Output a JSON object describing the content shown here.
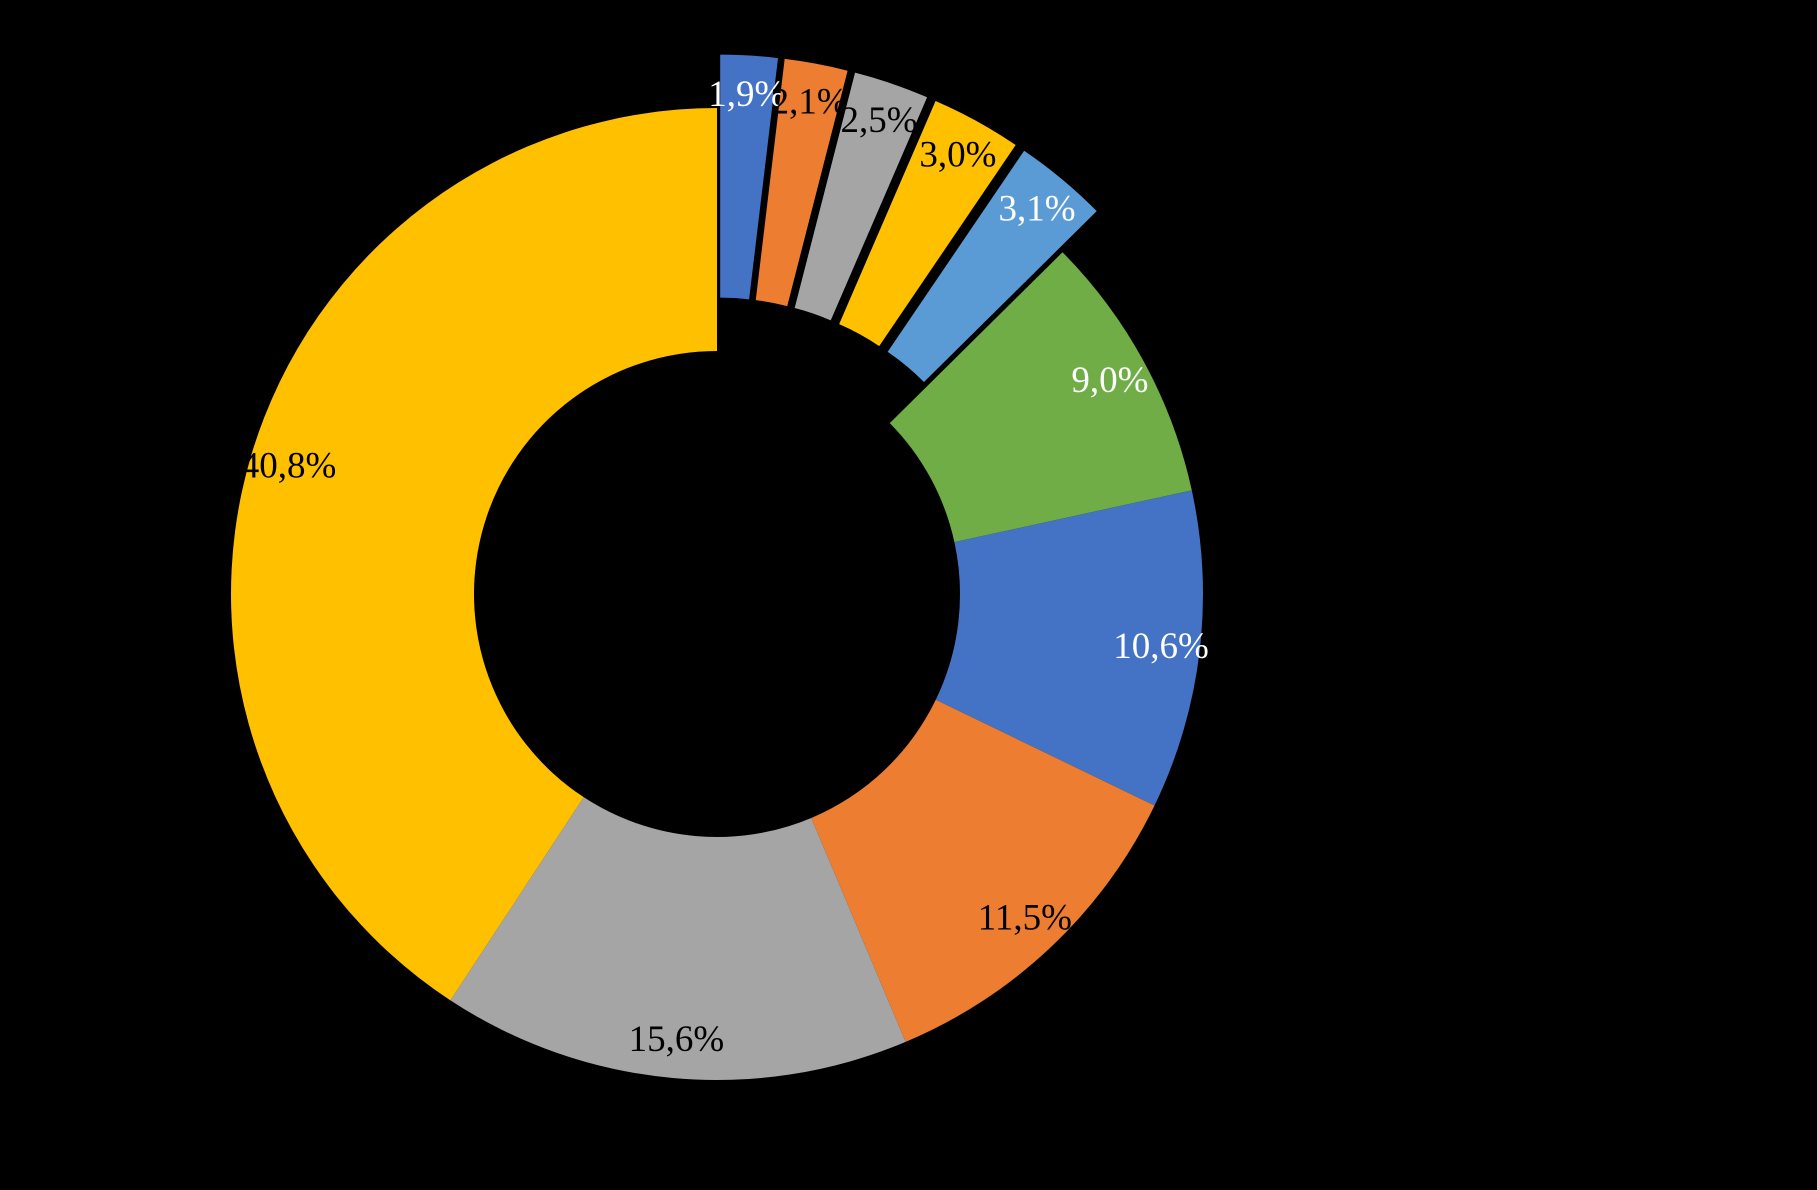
{
  "page": {
    "background": "#000000",
    "title": ""
  },
  "chart_data": {
    "type": "pie",
    "subtype": "donut",
    "title": "",
    "legend_position": "none",
    "start_angle_deg": 0,
    "direction": "clockwise",
    "donut_hole_ratio": 0.5,
    "explode_offset_ratio": 0.11,
    "label_position": "inside-end",
    "label_format": "percent, comma decimal separator",
    "slices": [
      {
        "value": 1.9,
        "label": "1,9%",
        "color": "#4472C4",
        "label_color": "#FFFFFF",
        "exploded": true
      },
      {
        "value": 2.1,
        "label": "2,1%",
        "color": "#ED7D31",
        "label_color": "#000000",
        "exploded": true
      },
      {
        "value": 2.5,
        "label": "2,5%",
        "color": "#A5A5A5",
        "label_color": "#000000",
        "exploded": true
      },
      {
        "value": 3.0,
        "label": "3,0%",
        "color": "#FFC000",
        "label_color": "#000000",
        "exploded": true
      },
      {
        "value": 3.1,
        "label": "3,1%",
        "color": "#5B9BD5",
        "label_color": "#FFFFFF",
        "exploded": true
      },
      {
        "value": 9.0,
        "label": "9,0%",
        "color": "#70AD47",
        "label_color": "#FFFFFF",
        "exploded": false
      },
      {
        "value": 10.6,
        "label": "10,6%",
        "color": "#4472C4",
        "label_color": "#FFFFFF",
        "exploded": false
      },
      {
        "value": 11.5,
        "label": "11,5%",
        "color": "#ED7D31",
        "label_color": "#000000",
        "exploded": false
      },
      {
        "value": 15.6,
        "label": "15,6%",
        "color": "#A5A5A5",
        "label_color": "#000000",
        "exploded": false
      },
      {
        "value": 40.8,
        "label": "40,8%",
        "color": "#FFC000",
        "label_color": "#000000",
        "exploded": false
      }
    ]
  }
}
